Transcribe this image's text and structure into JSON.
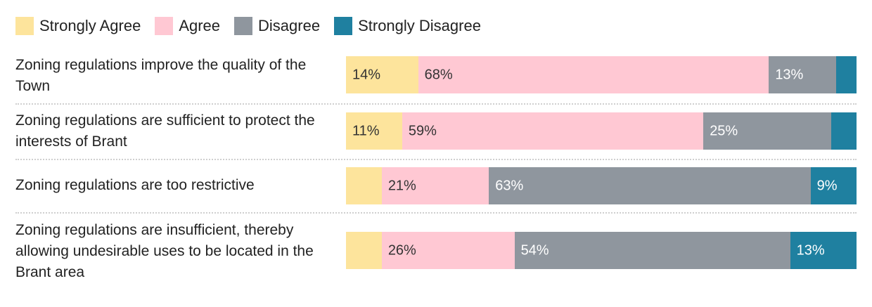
{
  "chart_data": {
    "type": "bar",
    "orientation": "horizontal-stacked-100",
    "title": "",
    "xlabel": "",
    "ylabel": "",
    "xlim": [
      0,
      100
    ],
    "grid": false,
    "legend_position": "top-left",
    "legend": [
      "Strongly Agree",
      "Agree",
      "Disagree",
      "Strongly Disagree"
    ],
    "colors": [
      "#fde49c",
      "#ffc8d3",
      "#8f969e",
      "#1f80a0"
    ],
    "label_colors": [
      "#333333",
      "#333333",
      "#ffffff",
      "#ffffff"
    ],
    "categories": [
      "Zoning regulations improve the quality of the Town",
      "Zoning regulations are sufficient to protect the interests of Brant",
      "Zoning regulations are too restrictive",
      "Zoning regulations are insufficient, thereby allowing undesirable uses to be located in the Brant area"
    ],
    "series": [
      {
        "name": "Strongly Agree",
        "values": [
          14,
          11,
          7,
          7
        ],
        "labels": [
          "14%",
          "11%",
          "",
          ""
        ]
      },
      {
        "name": "Agree",
        "values": [
          68,
          59,
          21,
          26
        ],
        "labels": [
          "68%",
          "59%",
          "21%",
          "26%"
        ]
      },
      {
        "name": "Disagree",
        "values": [
          13,
          25,
          63,
          54
        ],
        "labels": [
          "13%",
          "25%",
          "63%",
          "54%"
        ]
      },
      {
        "name": "Strongly Disagree",
        "values": [
          4,
          5,
          9,
          13
        ],
        "labels": [
          "",
          "",
          "9%",
          "13%"
        ]
      }
    ]
  }
}
